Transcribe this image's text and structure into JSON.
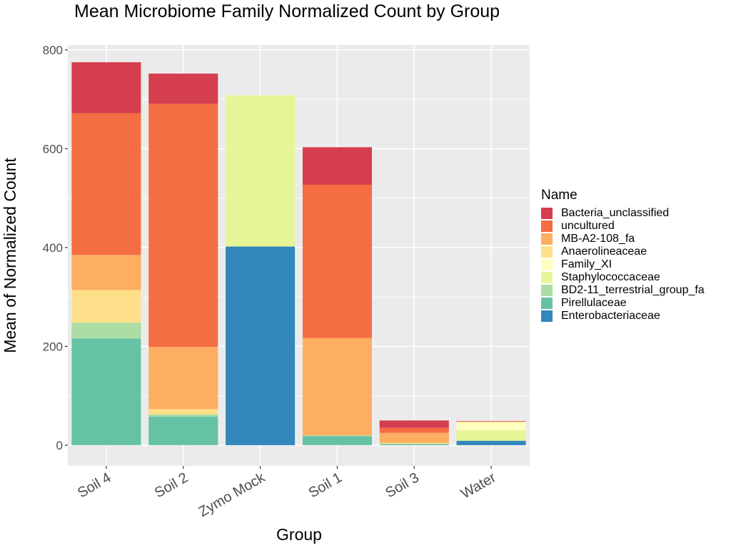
{
  "chart_data": {
    "type": "bar",
    "stacked": true,
    "title": "Mean Microbiome Family Normalized Count by Group",
    "xlabel": "Group",
    "ylabel": "Mean of Normalized Count",
    "ylim": [
      -42,
      810
    ],
    "yticks": [
      0,
      200,
      400,
      600,
      800
    ],
    "grid": true,
    "legend_title": "Name",
    "legend_position": "right",
    "categories": [
      "Soil 4",
      "Soil 2",
      "Zymo Mock",
      "Soil 1",
      "Soil 3",
      "Water"
    ],
    "series": [
      {
        "name": "Enterobacteriaceae",
        "color": "#3288BD",
        "values": [
          0,
          0,
          402,
          0,
          0,
          9
        ]
      },
      {
        "name": "Pirellulaceae",
        "color": "#66C2A5",
        "values": [
          216,
          58,
          0,
          18,
          2,
          0
        ]
      },
      {
        "name": "BD2-11_terrestrial_group_fa",
        "color": "#ABDDA4",
        "values": [
          32,
          4,
          0,
          2,
          1,
          0
        ]
      },
      {
        "name": "Staphylococcaceae",
        "color": "#E6F598",
        "values": [
          0,
          0,
          306,
          0,
          0,
          21
        ]
      },
      {
        "name": "Family_XI",
        "color": "#FFFFBF",
        "values": [
          0,
          0,
          0,
          0,
          0,
          16
        ]
      },
      {
        "name": "Anaerolineaceae",
        "color": "#FEE08B",
        "values": [
          66,
          11,
          0,
          0,
          2,
          2
        ]
      },
      {
        "name": "MB-A2-108_fa",
        "color": "#FDAE61",
        "values": [
          71,
          126,
          0,
          197,
          20,
          0
        ]
      },
      {
        "name": "uncultured",
        "color": "#F46D43",
        "values": [
          287,
          492,
          0,
          310,
          10,
          0
        ]
      },
      {
        "name": "Bacteria_unclassified",
        "color": "#D53E4F",
        "values": [
          103,
          61,
          0,
          76,
          15,
          1
        ]
      }
    ],
    "legend_order": [
      "Bacteria_unclassified",
      "uncultured",
      "MB-A2-108_fa",
      "Anaerolineaceae",
      "Family_XI",
      "Staphylococcaceae",
      "BD2-11_terrestrial_group_fa",
      "Pirellulaceae",
      "Enterobacteriaceae"
    ]
  }
}
